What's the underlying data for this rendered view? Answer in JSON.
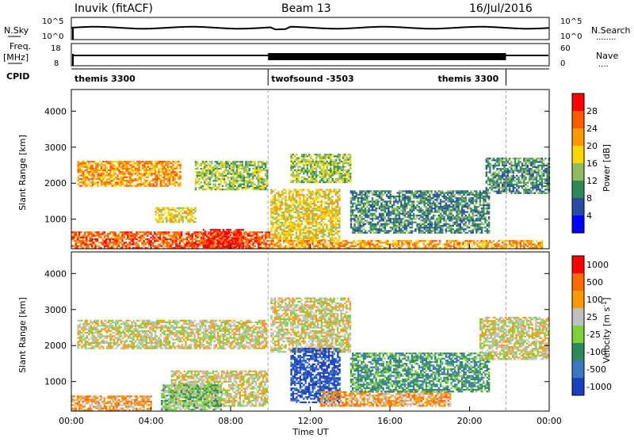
{
  "header": {
    "station": "Inuvik (fitACF)",
    "beam": "Beam 13",
    "date": "16/Jul/2016"
  },
  "strip_labels": {
    "nsky": "N.Sky",
    "nsearch": "N.Search",
    "nsearch_dots": "........",
    "freq": "Freq.",
    "freq_unit": "[MHz]",
    "nave": "Nave",
    "nave_dots": "....",
    "cpid": "CPID",
    "noise_top": "10^5",
    "noise_bot": "10^0",
    "search_top": "10^5",
    "search_bot": "10^0",
    "freq_top": "18",
    "freq_bot": "8",
    "nave_top": "60",
    "nave_bot": "0"
  },
  "cpid_segments": [
    {
      "label": "themis 3300",
      "start": 0.0,
      "end": 9.88
    },
    {
      "label": "twofsound -3503",
      "start": 9.88,
      "end": 21.83
    },
    {
      "label": "themis 3300",
      "start": 21.83,
      "end": 24.0
    }
  ],
  "colors": {
    "power": [
      "#0000ff",
      "#2a4aa8",
      "#2e8b57",
      "#8fbc60",
      "#ffd700",
      "#ff9900",
      "#ff5a00",
      "#ff0000"
    ],
    "velocity": [
      "#1a3fbf",
      "#3a78c0",
      "#2e8b57",
      "#7fd03a",
      "#c0c0c0",
      "#ff9900",
      "#ff6a00",
      "#ff0000"
    ],
    "ground_scatter": "#c0c0c0"
  },
  "chart_data": [
    {
      "type": "heatmap",
      "panel": "power",
      "ylabel": "Slant Range [km]",
      "colorbar_label": "Power [dB]",
      "colorbar_ticks": [
        "4",
        "8",
        "12",
        "16",
        "20",
        "24",
        "28"
      ],
      "x_ticks": [
        "00:00",
        "04:00",
        "08:00",
        "12:00",
        "16:00",
        "20:00",
        "00:00"
      ],
      "y_ticks": [
        "1000",
        "2000",
        "3000",
        "4000"
      ],
      "xlim": [
        0,
        24
      ],
      "ylim": [
        180,
        4600
      ],
      "features": [
        {
          "t0": 0.0,
          "t1": 9.9,
          "r0": 180,
          "r1": 650,
          "level": 6
        },
        {
          "t0": 6.6,
          "t1": 8.6,
          "r0": 200,
          "r1": 720,
          "level": 7
        },
        {
          "t0": 0.3,
          "t1": 5.5,
          "r0": 1900,
          "r1": 2600,
          "level": 5
        },
        {
          "t0": 4.2,
          "t1": 6.2,
          "r0": 900,
          "r1": 1300,
          "level": 4
        },
        {
          "t0": 6.2,
          "t1": 9.8,
          "r0": 1800,
          "r1": 2600,
          "level": 3
        },
        {
          "t0": 10.0,
          "t1": 13.5,
          "r0": 400,
          "r1": 1800,
          "level": 4
        },
        {
          "t0": 10.0,
          "t1": 23.6,
          "r0": 180,
          "r1": 420,
          "level": 5
        },
        {
          "t0": 11.0,
          "t1": 14.0,
          "r0": 2000,
          "r1": 2800,
          "level": 3
        },
        {
          "t0": 14.0,
          "t1": 21.0,
          "r0": 600,
          "r1": 1800,
          "level": 2
        },
        {
          "t0": 20.8,
          "t1": 24.0,
          "r0": 1700,
          "r1": 2700,
          "level": 2
        }
      ]
    },
    {
      "type": "heatmap",
      "panel": "velocity",
      "ylabel": "Slant Range [km]",
      "xlabel": "Time UT",
      "colorbar_label": "Velocity [m s",
      "colorbar_label_sup": "-1",
      "colorbar_label_end": "]",
      "colorbar_ticks": [
        "-1000",
        "-500",
        "-100",
        "-25",
        "25",
        "100",
        "500",
        "1000"
      ],
      "x_ticks": [
        "00:00",
        "04:00",
        "08:00",
        "12:00",
        "16:00",
        "20:00",
        "00:00"
      ],
      "y_ticks": [
        "1000",
        "2000",
        "3000",
        "4000"
      ],
      "xlim": [
        0,
        24
      ],
      "ylim": [
        180,
        4600
      ],
      "features": [
        {
          "t0": 0.3,
          "t1": 9.8,
          "r0": 1900,
          "r1": 2700,
          "level": 4
        },
        {
          "t0": 5.0,
          "t1": 9.8,
          "r0": 300,
          "r1": 1300,
          "level": 4
        },
        {
          "t0": 0.0,
          "t1": 4.0,
          "r0": 180,
          "r1": 600,
          "level": 5
        },
        {
          "t0": 4.5,
          "t1": 7.5,
          "r0": 200,
          "r1": 900,
          "level": 3
        },
        {
          "t0": 10.0,
          "t1": 14.0,
          "r0": 1800,
          "r1": 3300,
          "level": 4
        },
        {
          "t0": 11.0,
          "t1": 13.5,
          "r0": 400,
          "r1": 1900,
          "level": 0
        },
        {
          "t0": 12.5,
          "t1": 19.0,
          "r0": 300,
          "r1": 700,
          "level": 5
        },
        {
          "t0": 14.0,
          "t1": 21.0,
          "r0": 700,
          "r1": 1800,
          "level": 2
        },
        {
          "t0": 20.5,
          "t1": 24.0,
          "r0": 1600,
          "r1": 2800,
          "level": 4
        }
      ]
    }
  ]
}
